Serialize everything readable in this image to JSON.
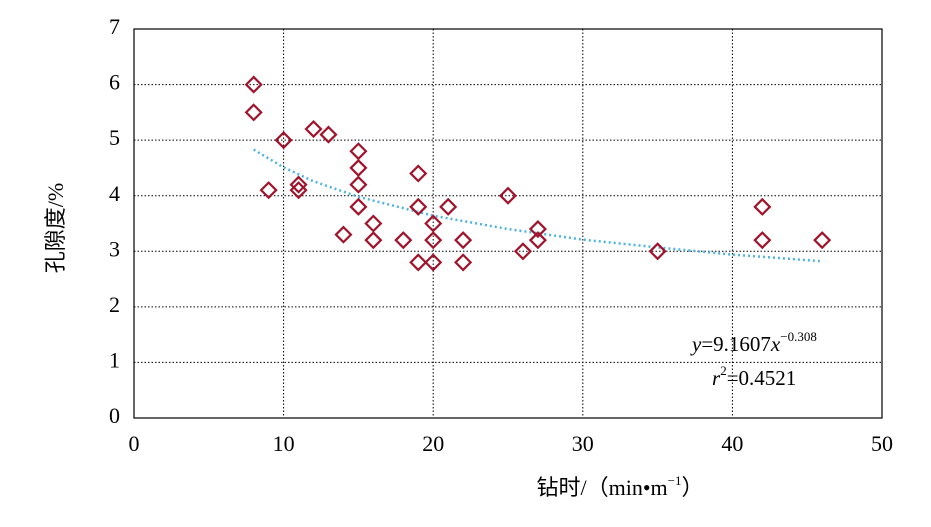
{
  "chart_data": {
    "type": "scatter",
    "xlabel_parts": [
      "钻时/（min•m",
      "−1",
      "）"
    ],
    "ylabel": "孔隙度/%",
    "xlim": [
      0,
      50
    ],
    "xticks": [
      0,
      10,
      20,
      30,
      40,
      50
    ],
    "ylim": [
      0,
      7
    ],
    "yticks": [
      0,
      1,
      2,
      3,
      4,
      5,
      6,
      7
    ],
    "grid": true,
    "series": [
      {
        "color": "#a0132b",
        "x": [
          8,
          8,
          9,
          10,
          11,
          11,
          12,
          13,
          14,
          15,
          15,
          15,
          15,
          16,
          16,
          18,
          19,
          19,
          19,
          20,
          20,
          20,
          21,
          22,
          22,
          25,
          26,
          27,
          27,
          35,
          42,
          42,
          46
        ],
        "values": [
          6,
          5.5,
          4.1,
          5,
          4.2,
          4.1,
          5.2,
          5.1,
          3.3,
          4.8,
          4.5,
          4.2,
          3.8,
          3.5,
          3.2,
          3.2,
          4.4,
          3.8,
          2.8,
          3.5,
          3.2,
          2.8,
          3.8,
          3.2,
          2.8,
          4,
          3,
          3.4,
          3.2,
          3,
          3.8,
          3.2,
          3.2
        ]
      }
    ],
    "trendline": {
      "color": "#4fb3e0",
      "x": [
        8,
        10,
        12,
        15,
        20,
        25,
        30,
        35,
        40,
        46
      ],
      "values": [
        4.83,
        4.51,
        4.26,
        3.98,
        3.64,
        3.4,
        3.21,
        3.07,
        2.94,
        2.82
      ]
    },
    "equation_parts": [
      "y",
      "=9.1607",
      "x",
      "−0.308"
    ],
    "r2_parts": [
      "r",
      "2",
      "=0.4521"
    ]
  }
}
